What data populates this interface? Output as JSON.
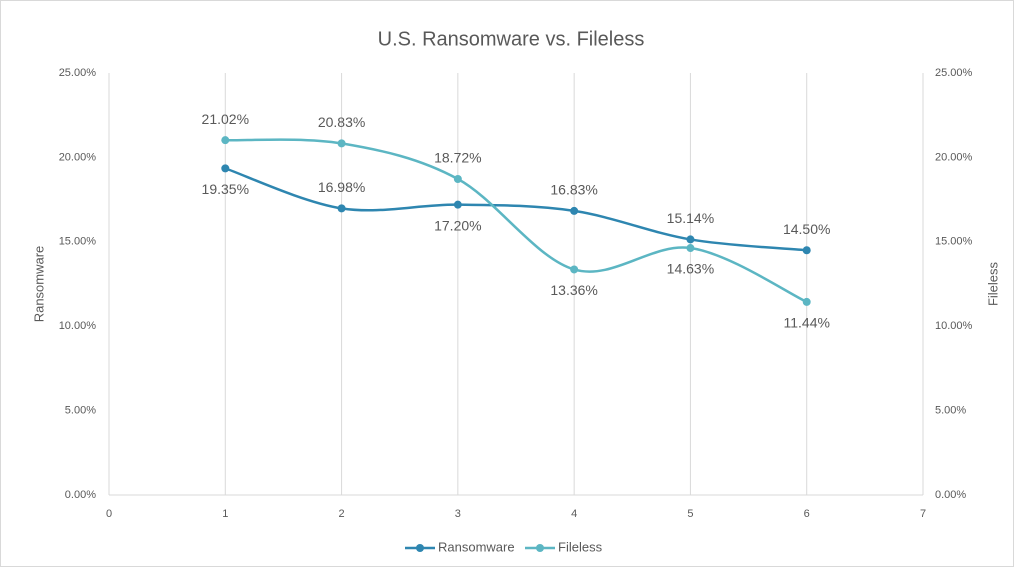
{
  "chart_data": {
    "type": "line",
    "title": "U.S. Ransomware vs. Fileless",
    "x": [
      1,
      2,
      3,
      4,
      5,
      6
    ],
    "series": [
      {
        "name": "Ransomware",
        "color": "#2e86b0",
        "values": [
          19.35,
          16.98,
          17.2,
          16.83,
          15.14,
          14.5
        ],
        "value_labels": [
          "19.35%",
          "16.98%",
          "17.20%",
          "16.83%",
          "15.14%",
          "14.50%"
        ]
      },
      {
        "name": "Fileless",
        "color": "#5cb6c3",
        "axis": "y2",
        "values": [
          21.02,
          20.83,
          18.72,
          13.36,
          14.63,
          11.44
        ],
        "value_labels": [
          "21.02%",
          "20.83%",
          "18.72%",
          "13.36%",
          "14.63%",
          "11.44%"
        ]
      }
    ],
    "xlim": [
      0,
      7
    ],
    "xticks": [
      0,
      1,
      2,
      3,
      4,
      5,
      6,
      7
    ],
    "ylabel": "Ransomware",
    "y2label": "Fileless",
    "ylim": [
      0,
      25
    ],
    "yticks": [
      {
        "value": 0,
        "label": "0.00%"
      },
      {
        "value": 5,
        "label": "5.00%"
      },
      {
        "value": 10,
        "label": "10.00%"
      },
      {
        "value": 15,
        "label": "15.00%"
      },
      {
        "value": 20,
        "label": "20.00%"
      },
      {
        "value": 25,
        "label": "25.00%"
      }
    ],
    "y2lim": [
      0,
      25
    ],
    "y2ticks": [
      {
        "value": 0,
        "label": "0.00%"
      },
      {
        "value": 5,
        "label": "5.00%"
      },
      {
        "value": 10,
        "label": "10.00%"
      },
      {
        "value": 15,
        "label": "15.00%"
      },
      {
        "value": 20,
        "label": "20.00%"
      },
      {
        "value": 25,
        "label": "25.00%"
      }
    ],
    "smooth": true,
    "grid": "x",
    "legend": "bottom"
  }
}
